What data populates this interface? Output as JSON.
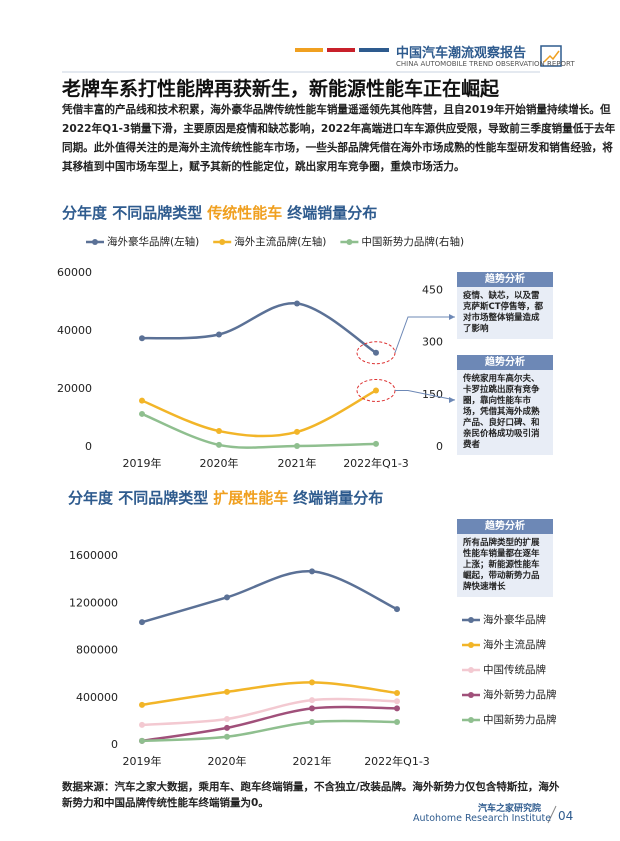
{
  "header": {
    "title": "中国汽车潮流观察报告",
    "subtitle": "CHINA AUTOMOBILE TREND OBSERVATION REPORT"
  },
  "headline": "老牌车系打性能牌再获新生，新能源性能车正在崛起",
  "body": "凭借丰富的产品线和技术积累，海外豪华品牌传统性能车销量遥遥领先其他阵营，且自2019年开始销量持续增长。但2022年Q1-3销量下滑，主要原因是疫情和缺芯影响，2022年高端进口车车源供应受限，导致前三季度销量低于去年同期。此外值得关注的是海外主流传统性能车市场，一些头部品牌凭借在海外市场成熟的性能车型研发和销售经验，将其移植到中国市场车型上，赋予其新的性能定位，跳出家用车竞争圈，重焕市场活力。",
  "chart_data": [
    {
      "type": "line",
      "title": [
        "分年度 不同品牌类型",
        "传统性能车",
        "终端销量分布"
      ],
      "categories": [
        "2019年",
        "2020年",
        "2021年",
        "2022年Q1-3"
      ],
      "series": [
        {
          "name": "海外豪华品牌(左轴)",
          "color": "#5b7196",
          "values": [
            37500,
            38800,
            49500,
            32500
          ]
        },
        {
          "name": "海外主流品牌(左轴)",
          "color": "#f2b528",
          "values": [
            16000,
            5500,
            5200,
            19500
          ]
        },
        {
          "name": "中国新势力品牌(右轴)",
          "color": "#8fbf8f",
          "axis": "y2",
          "values": [
            95,
            6,
            3,
            9
          ]
        }
      ],
      "ylim": [
        0,
        60000
      ],
      "yticks": [
        0,
        20000,
        40000,
        60000
      ],
      "y2lim": [
        0,
        500
      ],
      "y2ticks": [
        0,
        150,
        300,
        450
      ],
      "grid": false,
      "legend": "top",
      "annotations": [
        {
          "title": "趋势分析",
          "text": "疫情、缺芯，以及雷克萨斯CT停售等，都对市场整体销量造成了影响"
        },
        {
          "title": "趋势分析",
          "text": "传统家用车高尔夫、卡罗拉跳出原有竞争圈，靠向性能车市场，凭借其海外成熟产品、良好口碑、和亲民价格成功吸引消费者"
        }
      ]
    },
    {
      "type": "line",
      "title": [
        "分年度 不同品牌类型",
        "扩展性能车",
        "终端销量分布"
      ],
      "categories": [
        "2019年",
        "2020年",
        "2021年",
        "2022年Q1-3"
      ],
      "series": [
        {
          "name": "海外豪华品牌",
          "color": "#5b7196",
          "values": [
            1040000,
            1250000,
            1470000,
            1150000
          ]
        },
        {
          "name": "海外主流品牌",
          "color": "#f2b528",
          "values": [
            340000,
            450000,
            530000,
            440000
          ]
        },
        {
          "name": "中国传统品牌",
          "color": "#f3c9d1",
          "values": [
            170000,
            220000,
            380000,
            370000
          ]
        },
        {
          "name": "海外新势力品牌",
          "color": "#a0507a",
          "values": [
            35000,
            145000,
            310000,
            310000
          ]
        },
        {
          "name": "中国新势力品牌",
          "color": "#8fbf8f",
          "values": [
            35000,
            70000,
            195000,
            195000
          ]
        }
      ],
      "ylim": [
        0,
        1600000
      ],
      "yticks": [
        0,
        400000,
        800000,
        1200000,
        1600000
      ],
      "grid": false,
      "legend": "right",
      "annotations": [
        {
          "title": "趋势分析",
          "text": "所有品牌类型的扩展性能车销量都在逐年上涨；新能源性能车崛起，带动新势力品牌快速增长"
        }
      ]
    }
  ],
  "footer": {
    "source": "数据来源：汽车之家大数据，乘用车、跑车终端销量，不含独立/改装品牌。海外新势力仅包含特斯拉，海外新势力和中国品牌传统性能车终端销量为0。",
    "brand": "汽车之家研究院",
    "brand_en": "Autohome Research Institute",
    "page": "04"
  }
}
